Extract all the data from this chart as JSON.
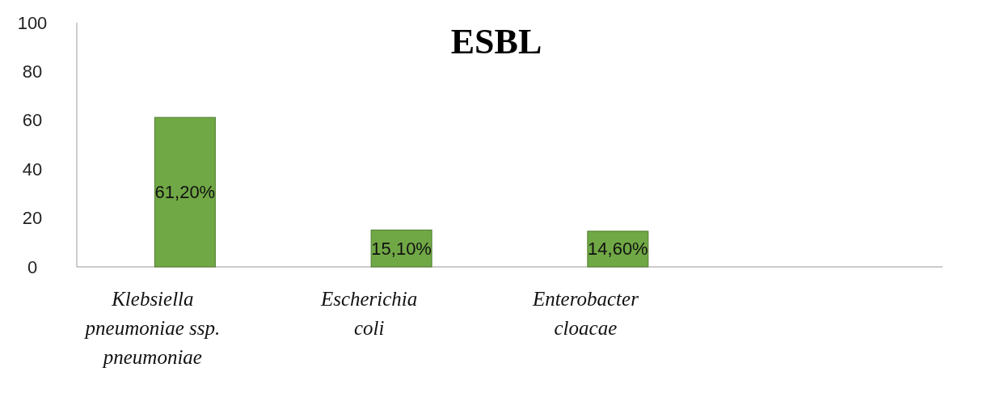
{
  "chart_data": {
    "type": "bar",
    "title": "ESBL",
    "categories": [
      "Klebsiella pneumoniae ssp. pneumoniae",
      "Escherichia coli",
      "Enterobacter cloacae",
      null
    ],
    "values": [
      61.2,
      15.1,
      14.6,
      null
    ],
    "value_labels": [
      "61,20%",
      "15,10%",
      "14,60%",
      null
    ],
    "color": "#70a845",
    "ylim": [
      0,
      100
    ],
    "yticks": [
      0,
      20,
      40,
      60,
      80,
      100
    ],
    "grid": false
  }
}
